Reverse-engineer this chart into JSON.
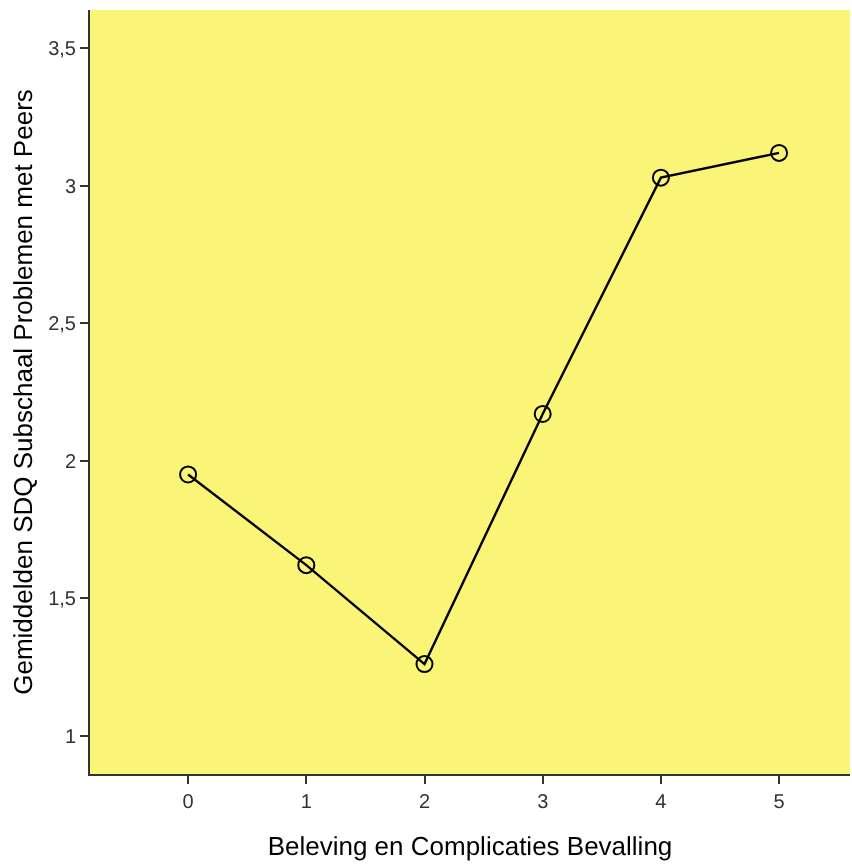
{
  "chart_data": {
    "type": "line",
    "xlabel": "Beleving en Complicaties Bevalling",
    "ylabel": "Gemiddelden SDQ Subschaal Problemen met Peers",
    "x": [
      0,
      1,
      2,
      3,
      4,
      5
    ],
    "series": [
      {
        "color": "#000000",
        "values": [
          1.95,
          1.62,
          1.26,
          2.17,
          3.03,
          3.12
        ]
      }
    ],
    "xlim": [
      -0.83,
      5.6
    ],
    "xticks": [
      0,
      1,
      2,
      3,
      4,
      5
    ],
    "ylim": [
      0.86,
      3.64
    ],
    "yticks": [
      {
        "value": 1,
        "label": "1"
      },
      {
        "value": 1.5,
        "label": "1,5"
      },
      {
        "value": 2,
        "label": "2"
      },
      {
        "value": 2.5,
        "label": "2,5"
      },
      {
        "value": 3,
        "label": "3"
      },
      {
        "value": 3.5,
        "label": "3,5"
      }
    ],
    "grid": false,
    "legend": false,
    "marker": "circle",
    "line_style": "solid"
  }
}
